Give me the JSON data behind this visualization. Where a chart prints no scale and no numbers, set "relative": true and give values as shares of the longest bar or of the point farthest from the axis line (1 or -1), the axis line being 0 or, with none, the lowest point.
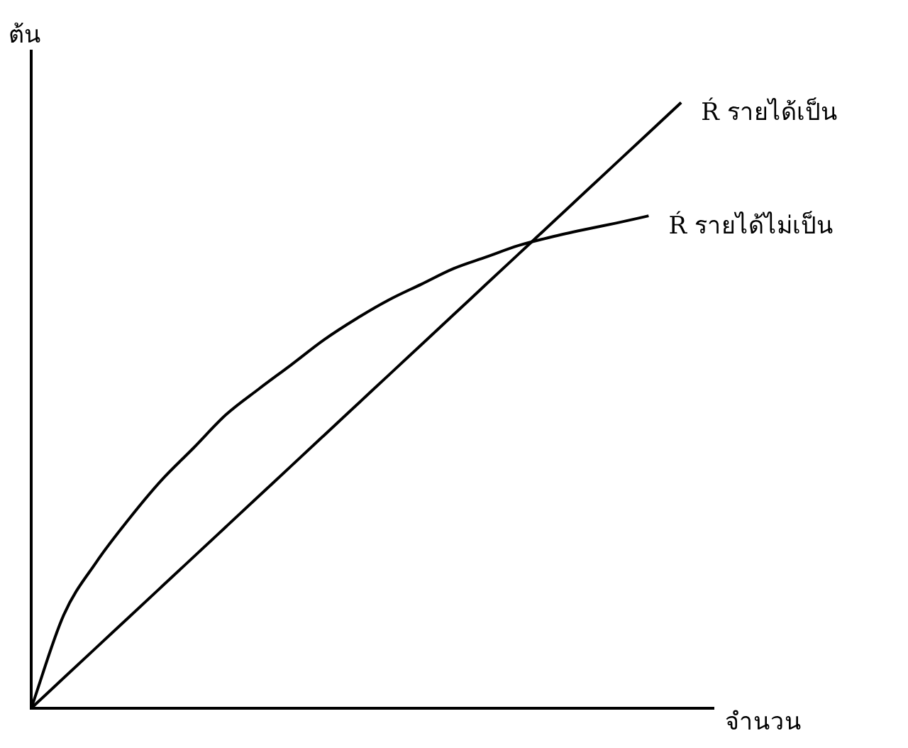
{
  "chart_data": {
    "type": "line",
    "relative": true,
    "xlabel": "จำนวน",
    "ylabel": "ต้น",
    "categories": [
      null,
      null,
      null,
      null,
      null,
      null,
      null,
      null,
      null,
      null,
      null,
      null,
      null,
      null,
      null,
      null,
      null,
      null,
      null,
      null,
      null,
      null
    ],
    "series": [
      {
        "name": "Ŕ รายได้เป็น",
        "color": "#000000",
        "values": [
          0,
          0.05,
          0.1,
          0.15,
          0.2,
          0.25,
          0.3,
          0.35,
          0.4,
          0.45,
          0.5,
          0.55,
          0.6,
          0.65,
          0.7,
          0.75,
          0.8,
          0.85,
          0.9,
          0.95,
          1,
          null
        ]
      },
      {
        "name": "Ŕ รายได้ไม่เป็น",
        "color": "#000000",
        "values": [
          0,
          0.154,
          0.241,
          0.312,
          0.376,
          0.43,
          0.485,
          0.527,
          0.567,
          0.608,
          0.643,
          0.674,
          0.7,
          0.726,
          0.745,
          0.764,
          0.778,
          0.79,
          0.801,
          0.813,
          null,
          null
        ]
      }
    ],
    "legend": false,
    "marker": "none",
    "line_style": "solid",
    "grid": false
  }
}
